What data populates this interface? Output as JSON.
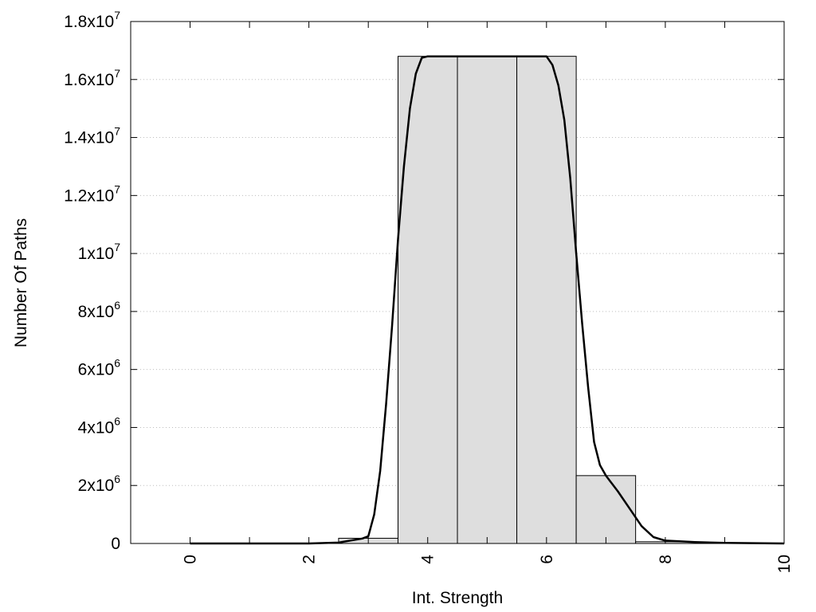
{
  "chart_data": {
    "type": "bar",
    "title": "",
    "xlabel": "Int. Strength",
    "ylabel": "Number Of Paths",
    "xlim": [
      -1,
      10
    ],
    "ylim": [
      0,
      18000000
    ],
    "grid": {
      "y": true,
      "x": false,
      "style": "dotted"
    },
    "x_ticks": [
      {
        "value": 0,
        "label": "0"
      },
      {
        "value": 2,
        "label": "2"
      },
      {
        "value": 4,
        "label": "4"
      },
      {
        "value": 6,
        "label": "6"
      },
      {
        "value": 8,
        "label": "8"
      },
      {
        "value": 10,
        "label": "10"
      }
    ],
    "y_ticks": [
      {
        "value": 0,
        "mant": "0",
        "exp": ""
      },
      {
        "value": 2000000,
        "mant": "2x10",
        "exp": "6"
      },
      {
        "value": 4000000,
        "mant": "4x10",
        "exp": "6"
      },
      {
        "value": 6000000,
        "mant": "6x10",
        "exp": "6"
      },
      {
        "value": 8000000,
        "mant": "8x10",
        "exp": "6"
      },
      {
        "value": 10000000,
        "mant": "1x10",
        "exp": "7"
      },
      {
        "value": 12000000,
        "mant": "1.2x10",
        "exp": "7"
      },
      {
        "value": 14000000,
        "mant": "1.4x10",
        "exp": "7"
      },
      {
        "value": 16000000,
        "mant": "1.6x10",
        "exp": "7"
      },
      {
        "value": 18000000,
        "mant": "1.8x10",
        "exp": "7"
      }
    ],
    "histogram": {
      "bin_width": 1,
      "bins": [
        {
          "x": 0,
          "value": 0
        },
        {
          "x": 1,
          "value": 0
        },
        {
          "x": 2,
          "value": 0
        },
        {
          "x": 3,
          "value": 180000
        },
        {
          "x": 4,
          "value": 16800000
        },
        {
          "x": 5,
          "value": 16800000
        },
        {
          "x": 6,
          "value": 16800000
        },
        {
          "x": 7,
          "value": 2340000
        },
        {
          "x": 8,
          "value": 60000
        },
        {
          "x": 9,
          "value": 0
        }
      ],
      "fill": "#dedede",
      "stroke": "#000000"
    },
    "curve": {
      "color": "#000000",
      "points": [
        [
          0,
          0
        ],
        [
          1,
          0
        ],
        [
          2,
          0
        ],
        [
          2.5,
          30000
        ],
        [
          2.9,
          170000
        ],
        [
          3.0,
          250000
        ],
        [
          3.1,
          1000000
        ],
        [
          3.2,
          2500000
        ],
        [
          3.3,
          4800000
        ],
        [
          3.4,
          7500000
        ],
        [
          3.5,
          10500000
        ],
        [
          3.6,
          13000000
        ],
        [
          3.7,
          15000000
        ],
        [
          3.8,
          16200000
        ],
        [
          3.9,
          16750000
        ],
        [
          4.0,
          16800000
        ],
        [
          5.0,
          16800000
        ],
        [
          6.0,
          16800000
        ],
        [
          6.1,
          16500000
        ],
        [
          6.2,
          15800000
        ],
        [
          6.3,
          14600000
        ],
        [
          6.4,
          12600000
        ],
        [
          6.5,
          10000000
        ],
        [
          6.6,
          7600000
        ],
        [
          6.7,
          5400000
        ],
        [
          6.8,
          3500000
        ],
        [
          6.9,
          2700000
        ],
        [
          7.0,
          2340000
        ],
        [
          7.2,
          1800000
        ],
        [
          7.4,
          1200000
        ],
        [
          7.6,
          600000
        ],
        [
          7.8,
          220000
        ],
        [
          8.0,
          100000
        ],
        [
          8.5,
          50000
        ],
        [
          9.0,
          20000
        ],
        [
          10.0,
          0
        ]
      ]
    }
  }
}
